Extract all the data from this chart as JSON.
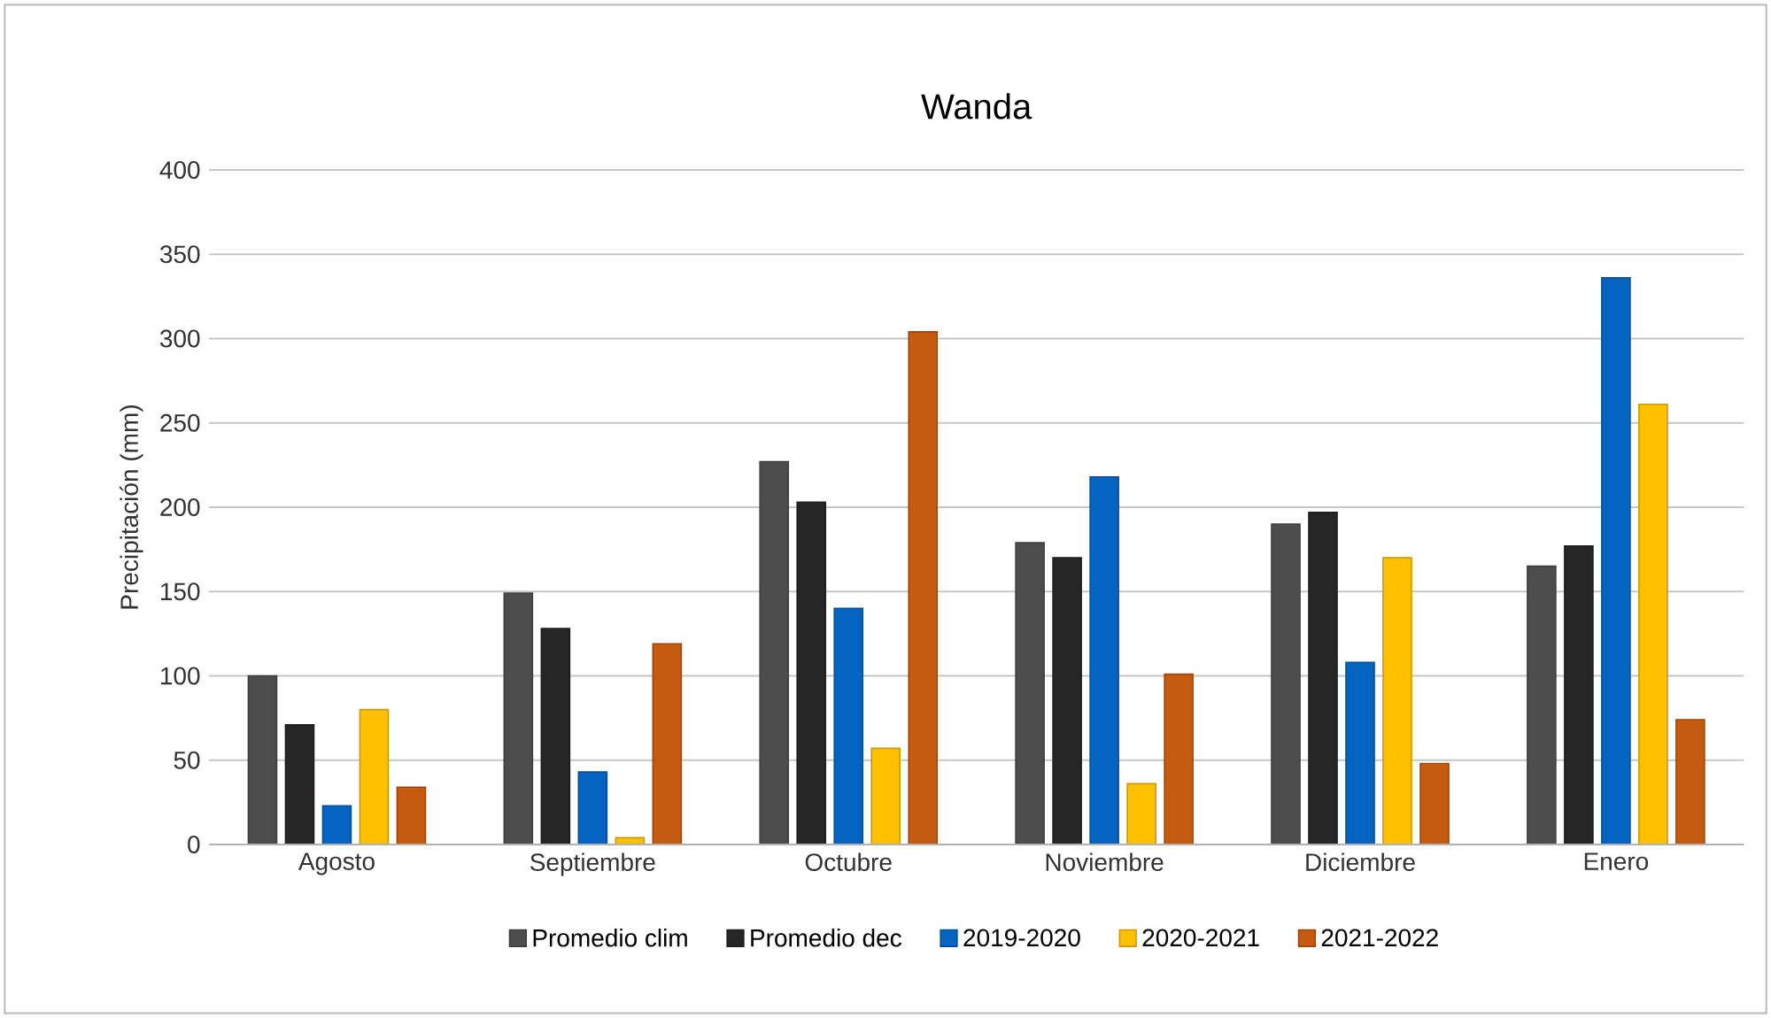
{
  "chart_data": {
    "type": "bar",
    "title": "Wanda",
    "ylabel": "Precipitación (mm)",
    "categories": [
      "Agosto",
      "Septiembre",
      "Octubre",
      "Noviembre",
      "Diciembre",
      "Enero"
    ],
    "series": [
      {
        "name": "Promedio clim",
        "color": "#4d4d4d",
        "values": [
          100,
          149,
          227,
          179,
          190,
          165
        ]
      },
      {
        "name": "Promedio dec",
        "color": "#262626",
        "values": [
          71,
          128,
          203,
          170,
          197,
          177
        ]
      },
      {
        "name": "2019-2020",
        "color": "#0563c1",
        "values": [
          23,
          43,
          140,
          218,
          108,
          336
        ]
      },
      {
        "name": "2020-2021",
        "color": "#ffc000",
        "values": [
          80,
          4,
          57,
          36,
          170,
          261
        ]
      },
      {
        "name": "2021-2022",
        "color": "#c55a11",
        "values": [
          34,
          119,
          304,
          101,
          48,
          74
        ]
      }
    ],
    "ylim": [
      0,
      400
    ],
    "yticks": [
      0,
      50,
      100,
      150,
      200,
      250,
      300,
      350,
      400
    ],
    "grid": "y",
    "legend": "bottom"
  }
}
